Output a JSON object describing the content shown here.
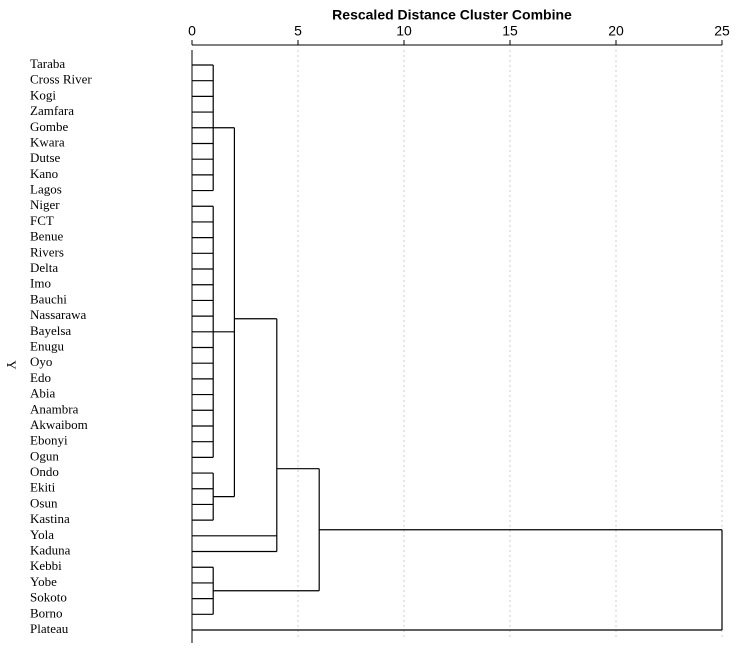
{
  "chart_data": {
    "type": "dendrogram",
    "title": "Rescaled Distance Cluster Combine",
    "y_label": "Y",
    "leaves": [
      "Taraba",
      "Cross River",
      "Kogi",
      "Zamfara",
      "Gombe",
      "Kwara",
      "Dutse",
      "Kano",
      "Lagos",
      "Niger",
      "FCT",
      "Benue",
      "Rivers",
      "Delta",
      "Imo",
      "Bauchi",
      "Nassarawa",
      "Bayelsa",
      "Enugu",
      "Oyo",
      "Edo",
      "Abia",
      "Anambra",
      "Akwaibom",
      "Ebonyi",
      "Ogun",
      "Ondo",
      "Ekiti",
      "Osun",
      "Kastina",
      "Yola",
      "Kaduna",
      "Kebbi",
      "Yobe",
      "Sokoto",
      "Borno",
      "Plateau"
    ],
    "merges": [
      {
        "children": [
          0,
          1,
          2,
          3,
          4,
          5,
          6,
          7,
          8
        ],
        "height": 1
      },
      {
        "children": [
          9,
          10,
          11,
          12,
          13,
          14,
          15,
          16,
          17,
          18,
          19,
          20,
          21,
          22,
          23,
          24,
          25
        ],
        "height": 1
      },
      {
        "children": [
          26,
          27,
          28,
          29
        ],
        "height": 1
      },
      {
        "children": [
          37,
          38,
          39
        ],
        "height": 2
      },
      {
        "children": [
          40,
          30,
          31
        ],
        "height": 4
      },
      {
        "children": [
          32,
          33,
          34,
          35
        ],
        "height": 1
      },
      {
        "children": [
          41,
          42
        ],
        "height": 6
      },
      {
        "children": [
          43,
          36
        ],
        "height": 25
      }
    ],
    "xlim": [
      0,
      25
    ],
    "xticks": [
      0,
      5,
      10,
      15,
      20,
      25
    ],
    "grid": true,
    "color": "#000000"
  }
}
